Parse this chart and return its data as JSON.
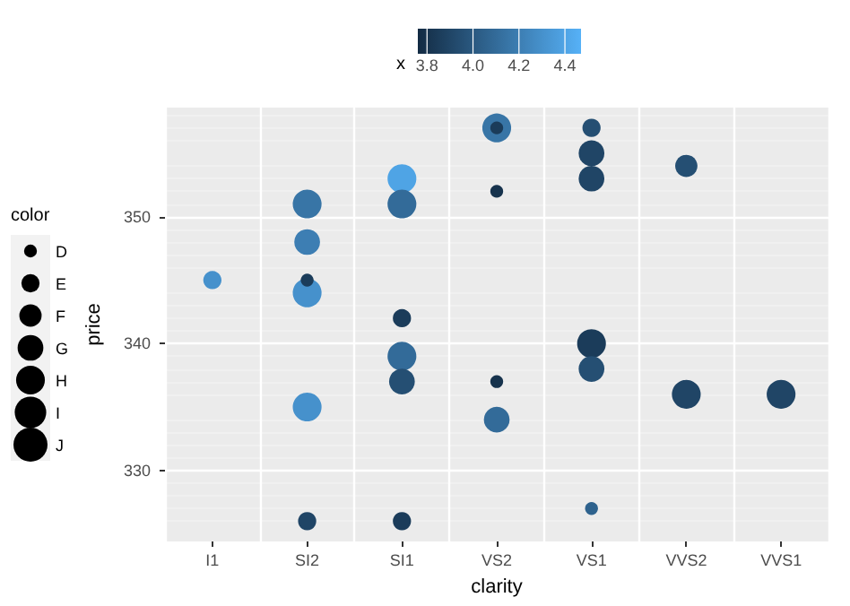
{
  "chart_data": {
    "type": "bubble",
    "xlabel": "clarity",
    "ylabel": "price",
    "legend_title": "color",
    "clabel": "x",
    "categories": [
      "I1",
      "SI2",
      "SI1",
      "VS2",
      "VS1",
      "VVS2",
      "VVS1"
    ],
    "ylim": [
      324.4,
      358.6
    ],
    "yticks": [
      330,
      340,
      350
    ],
    "grid": true,
    "marker": "circle",
    "clim": [
      3.76,
      4.47
    ],
    "cticks": [
      3.8,
      {
        "value": 4,
        "label": "4.0"
      },
      4.2,
      4.4
    ],
    "size_legend": [
      {
        "value": 1,
        "label": "D"
      },
      {
        "value": 2,
        "label": "E"
      },
      {
        "value": 3,
        "label": "F"
      },
      {
        "value": 4,
        "label": "G"
      },
      {
        "value": 5,
        "label": "H"
      },
      {
        "value": 6,
        "label": "I"
      },
      {
        "value": 7,
        "label": "J"
      }
    ],
    "series": [
      {
        "x": [
          "SI2",
          "SI2",
          "SI2",
          "SI1",
          "SI1",
          "SI1",
          "VS2",
          "VS1",
          "VVS2",
          "VVS1",
          "SI2",
          "SI1",
          "VS2",
          "VS1",
          "VS1",
          "VS1",
          "VVS2",
          "I1",
          "SI2",
          "SI1",
          "SI1",
          "VS1",
          "SI2",
          "VS2",
          "VS2",
          "VS2",
          "VS1"
        ],
        "values": [
          351,
          344,
          335,
          353,
          351,
          339,
          357,
          340,
          336,
          336,
          348,
          337,
          334,
          355,
          353,
          338,
          354,
          345,
          326,
          342,
          326,
          357,
          345,
          357,
          352,
          337,
          327
        ],
        "sizes": [
          5,
          5,
          5,
          5,
          5,
          5,
          5,
          5,
          5,
          5,
          4,
          4,
          4,
          4,
          4,
          4,
          3,
          2,
          2,
          2,
          2,
          2,
          1,
          1,
          1,
          1,
          1
        ],
        "cvalues": [
          4.15,
          4.3,
          4.3,
          4.4,
          4.1,
          4.1,
          4.15,
          3.85,
          3.9,
          3.9,
          4.2,
          3.95,
          4.1,
          3.9,
          3.9,
          3.95,
          3.95,
          4.3,
          3.9,
          3.85,
          3.85,
          3.95,
          3.85,
          3.85,
          3.8,
          3.8,
          4.05
        ]
      }
    ]
  }
}
